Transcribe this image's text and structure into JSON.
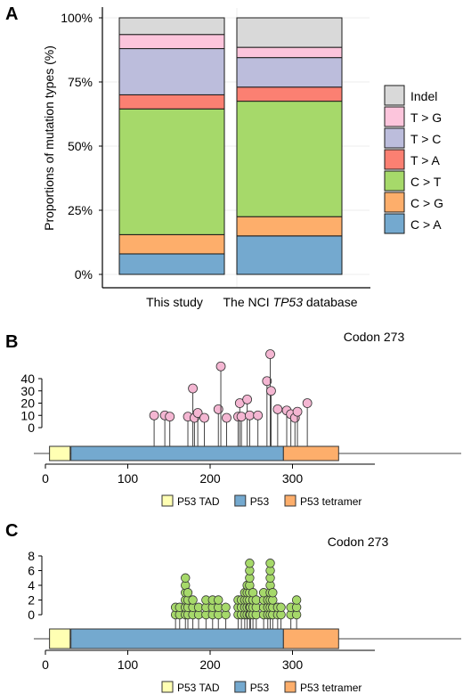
{
  "panels": {
    "a": {
      "letter": "A"
    },
    "b": {
      "letter": "B"
    },
    "c": {
      "letter": "C"
    }
  },
  "chart_data": [
    {
      "type": "bar",
      "stacked": true,
      "grid": true,
      "ylabel": "Proportions of mutation types (%)",
      "ylim": [
        0,
        100
      ],
      "y_ticks": [
        "0%",
        "25%",
        "50%",
        "75%",
        "100%"
      ],
      "categories": [
        {
          "label": "This study"
        },
        {
          "label_parts": [
            "The NCI ",
            "TP53",
            " database"
          ],
          "italic_part": 1
        }
      ],
      "legend_position": "right",
      "series": [
        {
          "name": "C > A",
          "color": "#74a9cf",
          "values": [
            8,
            15
          ]
        },
        {
          "name": "C > G",
          "color": "#fdae6b",
          "values": [
            7.5,
            7.5
          ]
        },
        {
          "name": "C > T",
          "color": "#a6d96a",
          "values": [
            49,
            45
          ]
        },
        {
          "name": "T > A",
          "color": "#fb8072",
          "values": [
            5.5,
            5.5
          ]
        },
        {
          "name": "T > C",
          "color": "#bcbddc",
          "values": [
            18,
            11.5
          ]
        },
        {
          "name": "T > G",
          "color": "#fcc5dc",
          "values": [
            5.5,
            4
          ]
        },
        {
          "name": "Indel",
          "color": "#d9d9d9",
          "values": [
            6.5,
            11.5
          ]
        }
      ]
    },
    {
      "type": "lollipop",
      "x_ticks": [
        0,
        100,
        200,
        300
      ],
      "y_ticks": [
        0,
        10,
        20,
        30,
        40
      ],
      "xlim": [
        0,
        393
      ],
      "annotation": "Codon 273",
      "marker_color": "#f4b6d2",
      "domains": [
        {
          "name": "P53 TAD",
          "start": 5,
          "end": 30,
          "color": "#ffffb3"
        },
        {
          "name": "P53",
          "start": 31,
          "end": 289,
          "color": "#74a9cf"
        },
        {
          "name": "P53 tetramer",
          "start": 289,
          "end": 356,
          "color": "#fdae6b"
        }
      ],
      "points": [
        {
          "x": 132,
          "y": 10
        },
        {
          "x": 145,
          "y": 10
        },
        {
          "x": 151,
          "y": 9
        },
        {
          "x": 173,
          "y": 9
        },
        {
          "x": 179,
          "y": 32
        },
        {
          "x": 181,
          "y": 8
        },
        {
          "x": 185,
          "y": 12
        },
        {
          "x": 193,
          "y": 8
        },
        {
          "x": 210,
          "y": 15
        },
        {
          "x": 213,
          "y": 50
        },
        {
          "x": 220,
          "y": 8
        },
        {
          "x": 234,
          "y": 9
        },
        {
          "x": 236,
          "y": 20
        },
        {
          "x": 238,
          "y": 9
        },
        {
          "x": 245,
          "y": 23
        },
        {
          "x": 248,
          "y": 10
        },
        {
          "x": 258,
          "y": 10
        },
        {
          "x": 269,
          "y": 38
        },
        {
          "x": 273,
          "y": 60
        },
        {
          "x": 274,
          "y": 30
        },
        {
          "x": 282,
          "y": 15
        },
        {
          "x": 293,
          "y": 14
        },
        {
          "x": 298,
          "y": 11
        },
        {
          "x": 303,
          "y": 8
        },
        {
          "x": 306,
          "y": 13
        },
        {
          "x": 318,
          "y": 20
        }
      ]
    },
    {
      "type": "lollipop",
      "x_ticks": [
        0,
        100,
        200,
        300
      ],
      "y_ticks": [
        0,
        2,
        4,
        6,
        8
      ],
      "xlim": [
        0,
        393
      ],
      "annotation": "Codon 273",
      "marker_color": "#a6d96a",
      "domains": [
        {
          "name": "P53 TAD",
          "start": 5,
          "end": 30,
          "color": "#ffffb3"
        },
        {
          "name": "P53",
          "start": 31,
          "end": 289,
          "color": "#74a9cf"
        },
        {
          "name": "P53 tetramer",
          "start": 289,
          "end": 356,
          "color": "#fdae6b"
        }
      ],
      "points": [
        {
          "x": 158,
          "y": 1
        },
        {
          "x": 163,
          "y": 1
        },
        {
          "x": 170,
          "y": 5
        },
        {
          "x": 173,
          "y": 3
        },
        {
          "x": 179,
          "y": 2
        },
        {
          "x": 186,
          "y": 1
        },
        {
          "x": 195,
          "y": 2
        },
        {
          "x": 203,
          "y": 2
        },
        {
          "x": 210,
          "y": 2
        },
        {
          "x": 219,
          "y": 1
        },
        {
          "x": 234,
          "y": 2
        },
        {
          "x": 238,
          "y": 2
        },
        {
          "x": 242,
          "y": 3
        },
        {
          "x": 245,
          "y": 4
        },
        {
          "x": 248,
          "y": 7
        },
        {
          "x": 249,
          "y": 1
        },
        {
          "x": 252,
          "y": 3
        },
        {
          "x": 256,
          "y": 2
        },
        {
          "x": 265,
          "y": 3
        },
        {
          "x": 270,
          "y": 2
        },
        {
          "x": 273,
          "y": 7
        },
        {
          "x": 276,
          "y": 3
        },
        {
          "x": 282,
          "y": 1
        },
        {
          "x": 286,
          "y": 1
        },
        {
          "x": 298,
          "y": 1
        },
        {
          "x": 305,
          "y": 2
        }
      ]
    }
  ]
}
